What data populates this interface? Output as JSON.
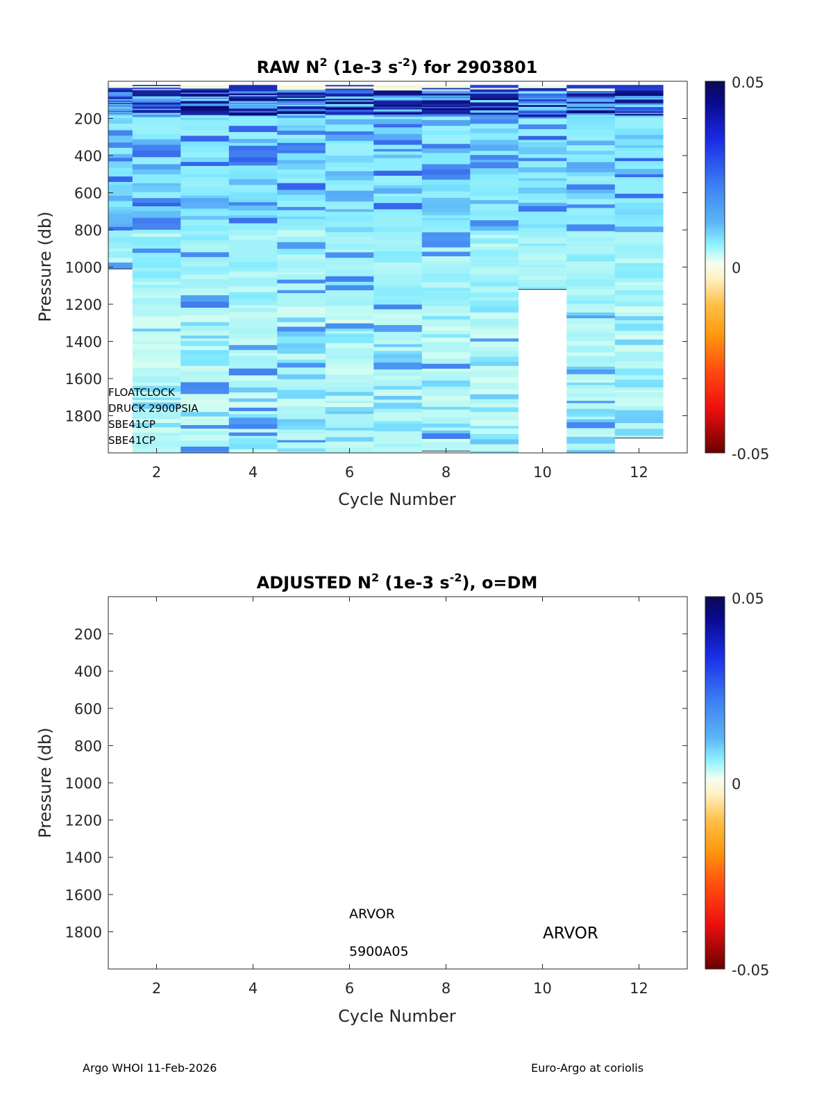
{
  "chart_data": [
    {
      "type": "heatmap",
      "title_main": "RAW N",
      "title_sup1": "2",
      "title_units": " (1e-3 s",
      "title_sup2": "-2",
      "title_tail": ") for 2903801",
      "xlabel": "Cycle Number",
      "ylabel": "Pressure (db)",
      "xlim": [
        1,
        13
      ],
      "ylim": [
        0,
        2000
      ],
      "y_reversed": true,
      "xticks": [
        2,
        4,
        6,
        8,
        10,
        12
      ],
      "yticks": [
        200,
        400,
        600,
        800,
        1000,
        1200,
        1400,
        1600,
        1800
      ],
      "colorbar": {
        "min": -0.05,
        "max": 0.05,
        "ticks": [
          "0.05",
          "0",
          "-0.05"
        ]
      },
      "cycles": [
        1,
        2,
        3,
        4,
        5,
        6,
        7,
        8,
        9,
        10,
        11,
        12
      ],
      "top_pressure": 20,
      "max_pressure": [
        1010,
        2000,
        2000,
        2000,
        2000,
        2000,
        2000,
        1990,
        2000,
        1120,
        2000,
        1920
      ],
      "annotations": [
        "FLOATCLOCK",
        "DRUCK 2900PSIA",
        "SBE41CP",
        "SBE41CP"
      ]
    },
    {
      "type": "heatmap",
      "title_main": "ADJUSTED N",
      "title_sup1": "2",
      "title_units": " (1e-3 s",
      "title_sup2": "-2",
      "title_tail": "), o=DM",
      "xlabel": "Cycle Number",
      "ylabel": "Pressure (db)",
      "xlim": [
        1,
        13
      ],
      "ylim": [
        0,
        2000
      ],
      "y_reversed": true,
      "xticks": [
        2,
        4,
        6,
        8,
        10,
        12
      ],
      "yticks": [
        200,
        400,
        600,
        800,
        1000,
        1200,
        1400,
        1600,
        1800
      ],
      "colorbar": {
        "min": -0.05,
        "max": 0.05,
        "ticks": [
          "0.05",
          "0",
          "-0.05"
        ]
      },
      "annotations": [
        "ARVOR",
        "5900A05",
        "ARVOR"
      ]
    }
  ],
  "footer": {
    "left": "Argo WHOI 11-Feb-2026",
    "right": "Euro-Argo at coriolis"
  }
}
